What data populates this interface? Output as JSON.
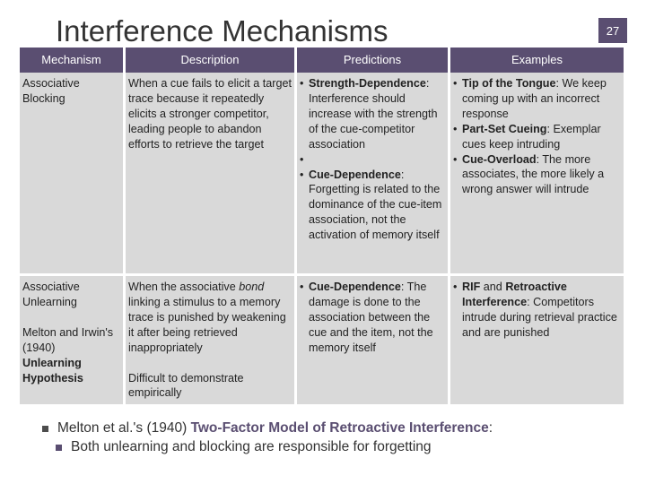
{
  "slide": {
    "title": "Interference Mechanisms",
    "page_number": "27"
  },
  "table": {
    "headers": [
      "Mechanism",
      "Description",
      "Predictions",
      "Examples"
    ],
    "row1": {
      "mechanism": "Associative Blocking",
      "description": "When a cue fails to elicit a target trace because it repeatedly elicits a stronger competitor, leading people to abandon efforts to retrieve the target",
      "pred1_bold": "Strength-Dependence",
      "pred1_text": ": Interference should increase with the strength of the cue-competitor association",
      "pred2_bold": "Cue-Dependence",
      "pred2_text": ": Forgetting is related to the dominance of the cue-item association, not the activation of memory itself",
      "ex1_bold": "Tip of the Tongue",
      "ex1_text": ": We keep coming up with an incorrect response",
      "ex2_bold": "Part-Set Cueing",
      "ex2_text": ": Exemplar cues keep intruding",
      "ex3_bold": "Cue-Overload",
      "ex3_text": ": The more associates, the more likely a wrong answer will intrude"
    },
    "row2": {
      "mechanism": "Associative Unlearning",
      "mechanism_sub": "Melton and Irwin's (1940)",
      "mechanism_sub_bold": "Unlearning Hypothesis",
      "desc_pre": "When the associative ",
      "desc_italic": "bond",
      "desc_post": " linking a stimulus to a memory trace is punished by weakening it after being retrieved inappropriately",
      "desc2": "Difficult to demonstrate empirically",
      "pred_bold": "Cue-Dependence",
      "pred_text": ": The damage is done to the association between the cue and the item, not the memory itself",
      "ex_bold1": "RIF",
      "ex_mid": " and ",
      "ex_bold2": "Retroactive Interference",
      "ex_text": ": Competitors intrude during retrieval practice and are punished"
    }
  },
  "bottom": {
    "line1_pre": "Melton et al.'s (1940) ",
    "line1_accent": "Two-Factor Model of Retroactive Interference",
    "line1_post": ":",
    "line2": "Both unlearning and blocking are responsible for forgetting"
  },
  "colors": {
    "header_bg": "#5a4e71",
    "cell_bg": "#d9d9d9"
  }
}
